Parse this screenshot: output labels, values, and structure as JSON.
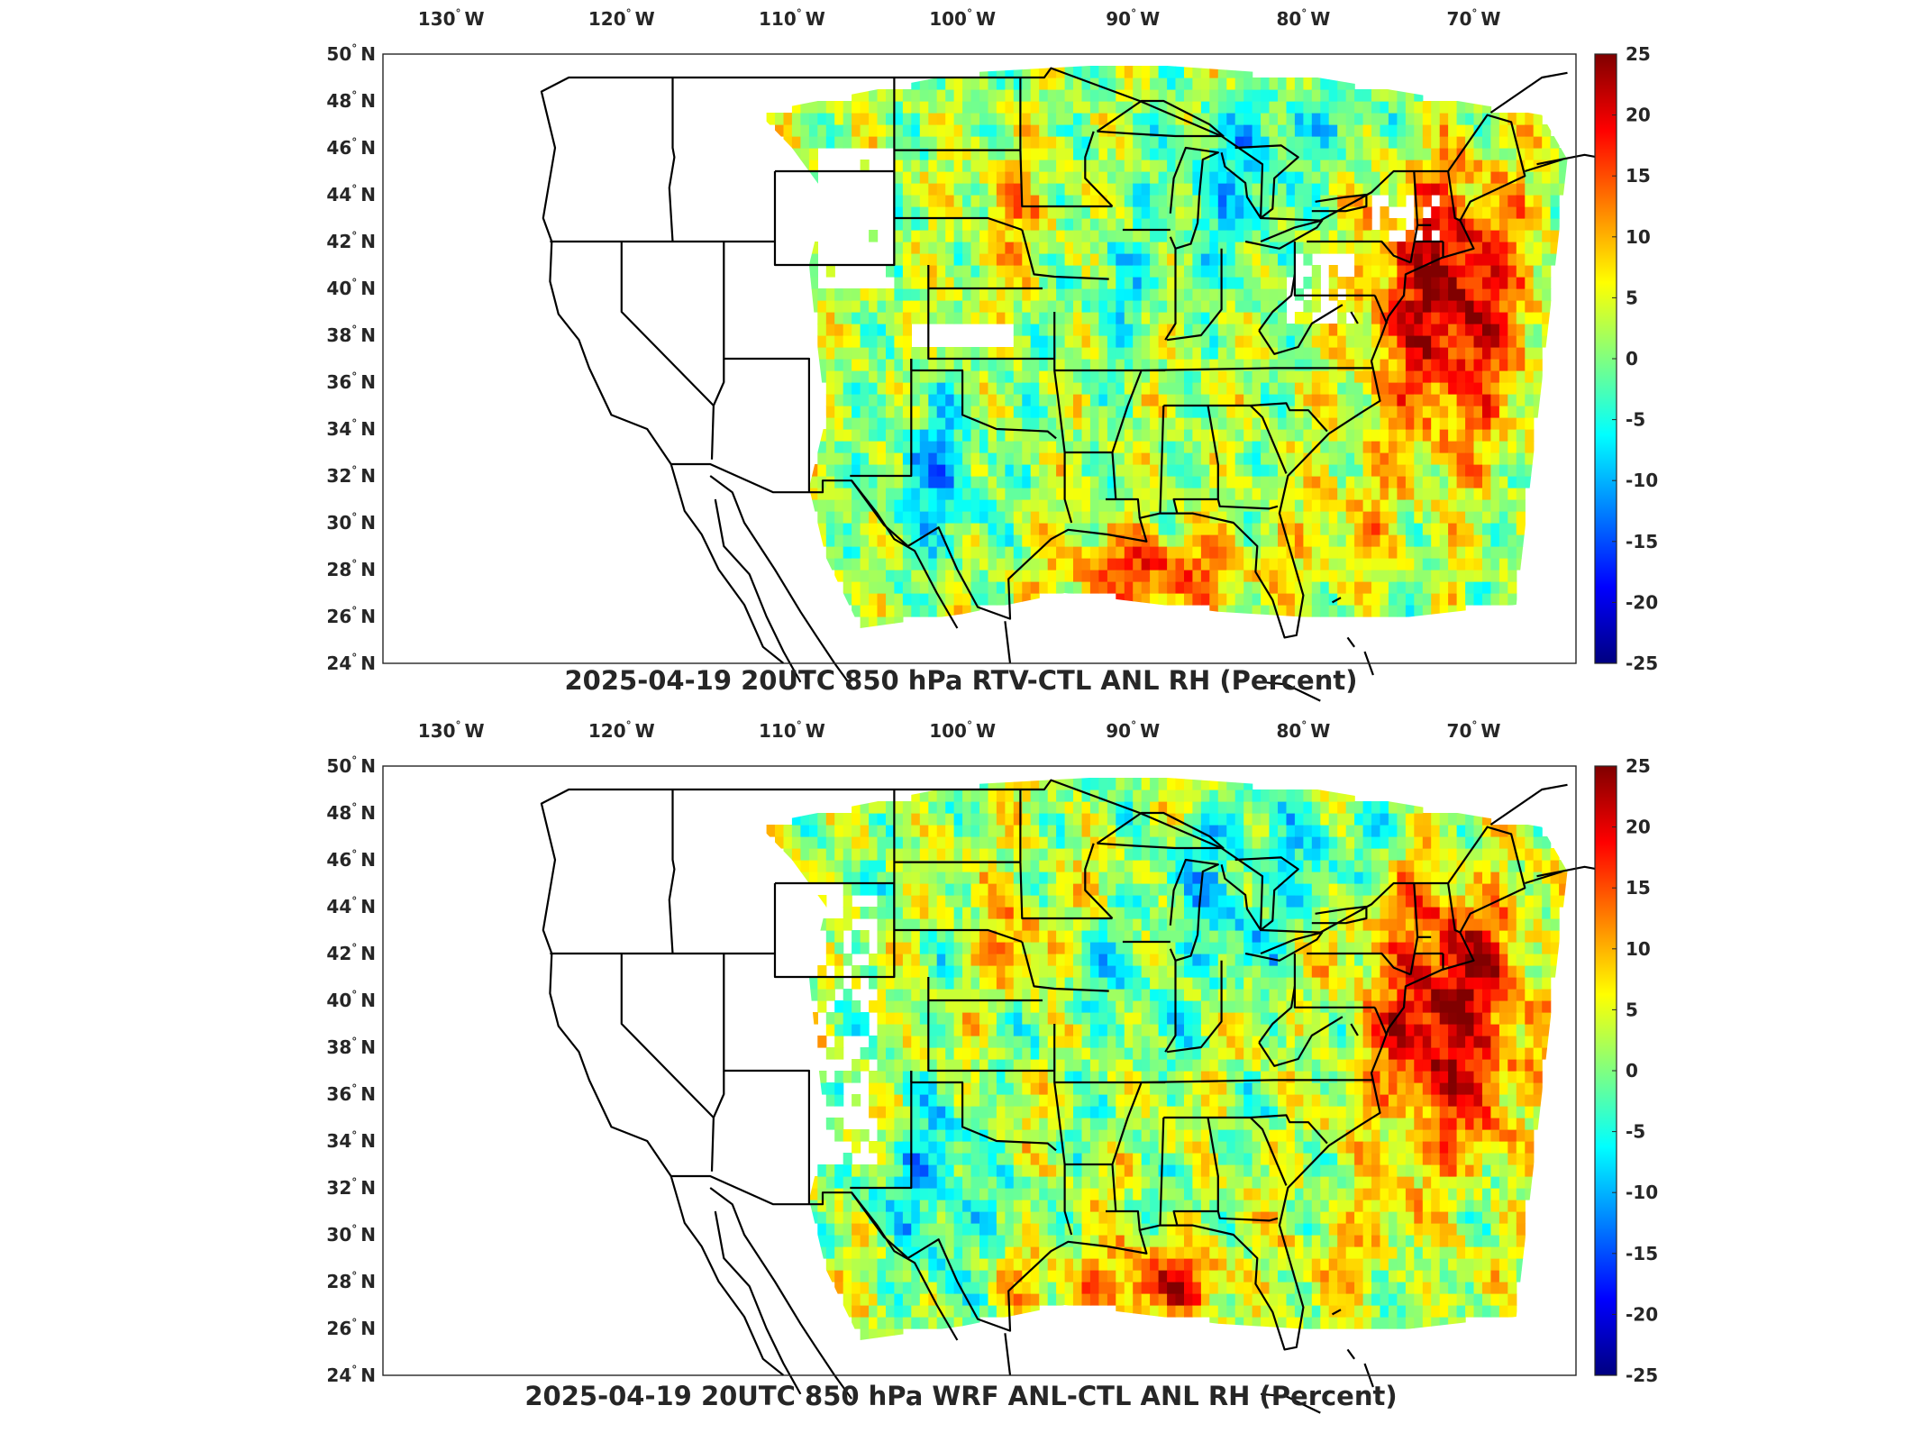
{
  "panels": [
    {
      "id": "top",
      "title": "2025-04-19 20UTC 850 hPa RTV-CTL ANL RH (Percent)",
      "gulf_positive": true
    },
    {
      "id": "bottom",
      "title": "2025-04-19 20UTC 850 hPa WRF ANL-CTL ANL RH (Percent)",
      "gulf_positive": true
    }
  ],
  "axes": {
    "lon_labels": [
      "130",
      "120",
      "110",
      "100",
      "90",
      "80",
      "70"
    ],
    "lon_hemi": "W",
    "lat_labels": [
      "50",
      "48",
      "46",
      "44",
      "42",
      "40",
      "38",
      "36",
      "34",
      "32",
      "30",
      "28",
      "26",
      "24"
    ],
    "lat_hemi": "N",
    "degree_symbol": "°",
    "lon_range": [
      -134,
      -64
    ],
    "lat_range": [
      24,
      50
    ]
  },
  "colorbar": {
    "ticks": [
      "25",
      "20",
      "15",
      "10",
      "5",
      "0",
      "-5",
      "-10",
      "-15",
      "-20",
      "-25"
    ],
    "range": [
      -25,
      25
    ],
    "colormap": "jet",
    "colors": [
      "#000080",
      "#0000ff",
      "#0080ff",
      "#00ffff",
      "#80ff80",
      "#ffff00",
      "#ff8000",
      "#ff0000",
      "#800000"
    ]
  },
  "map": {
    "background": "#ffffff",
    "boundary_color": "#000000",
    "missing_color": "#ffffff"
  }
}
